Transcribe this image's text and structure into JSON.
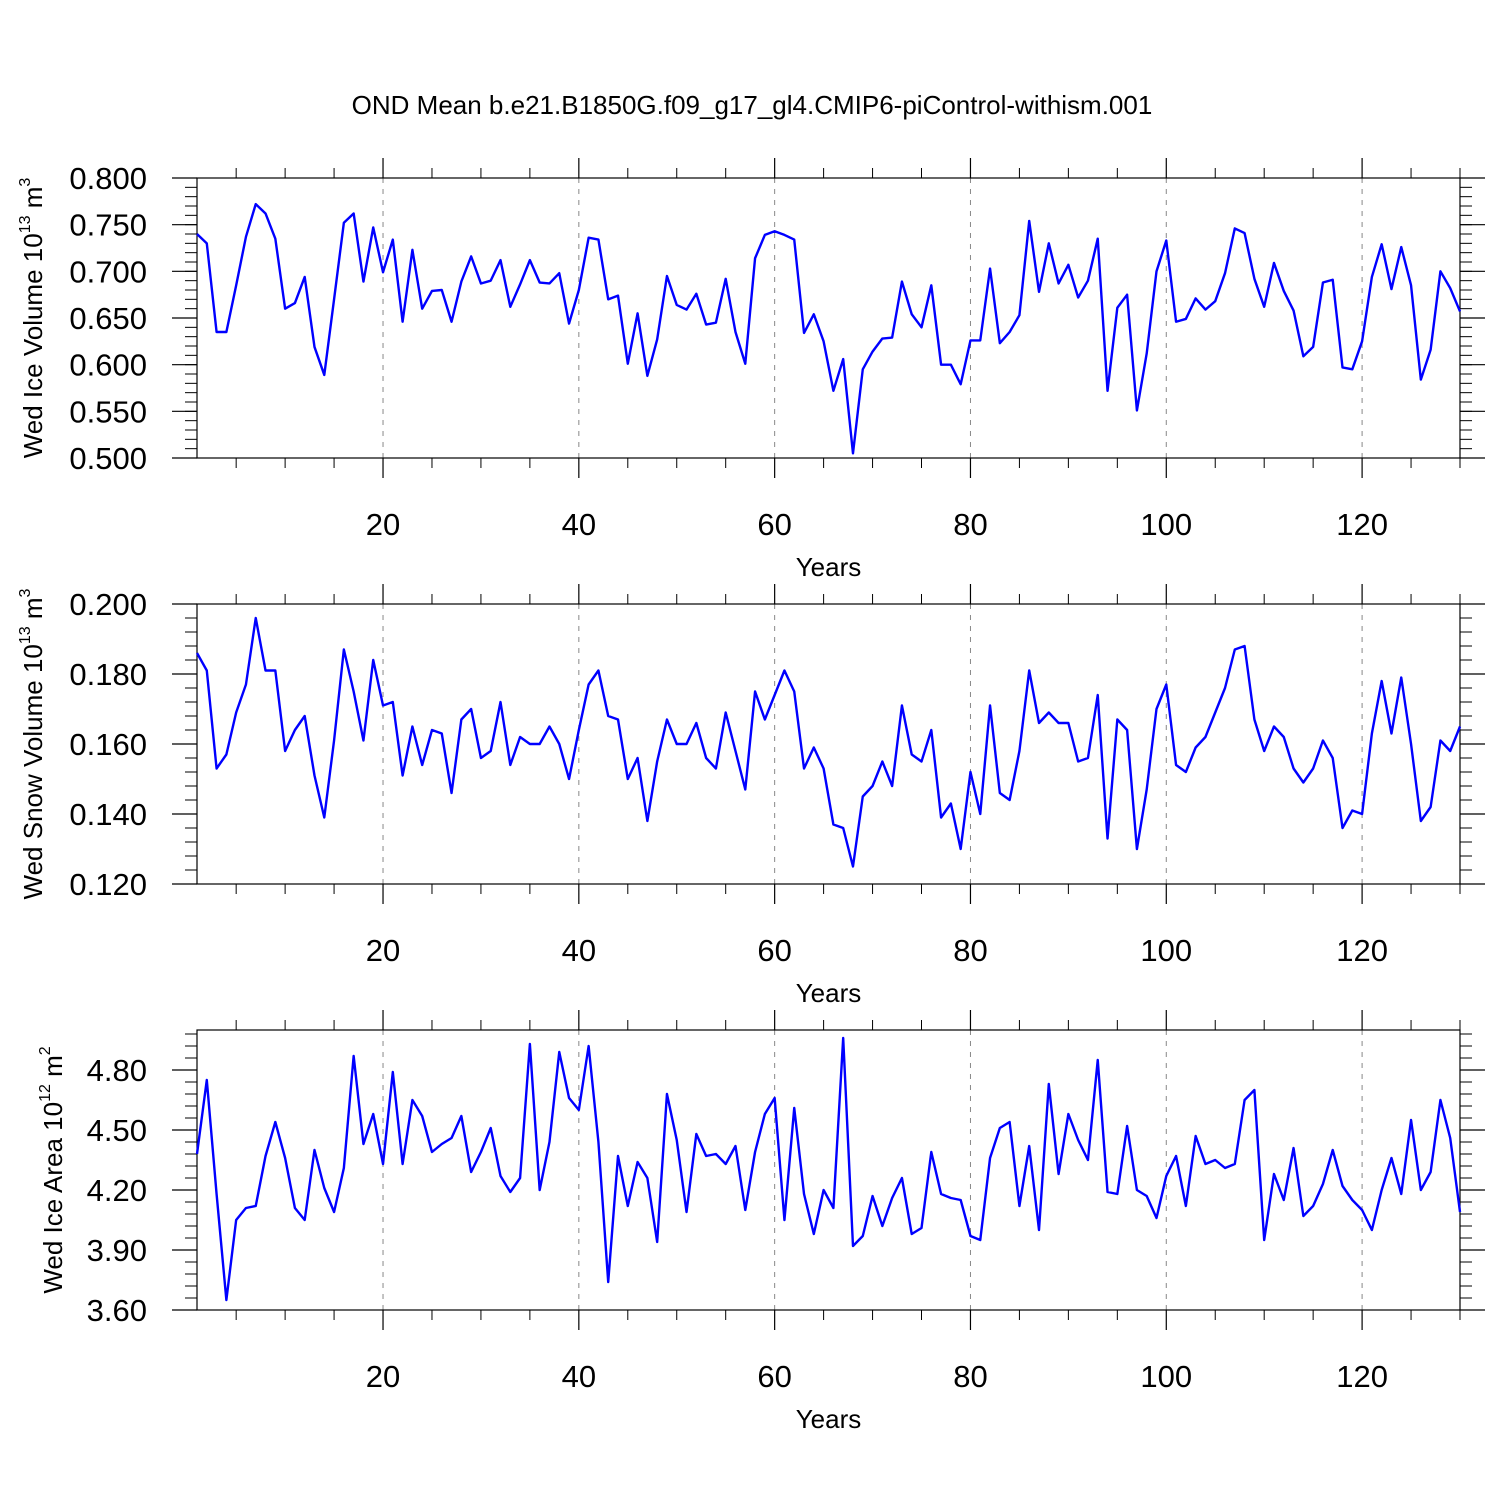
{
  "title": "OND Mean b.e21.B1850G.f09_g17_gl4.CMIP6-piControl-withism.001",
  "colors": {
    "line": "#0000ff",
    "axis": "#000000",
    "grid": "#888888"
  },
  "chart_data": [
    {
      "type": "line",
      "xlabel": "Years",
      "ylabel": {
        "text": "Wed Ice Volume 10",
        "exp": "13",
        "unit": " m",
        "unit_exp": "3"
      },
      "xlim": [
        1,
        130
      ],
      "ylim": [
        0.5,
        0.8
      ],
      "xticks": [
        20,
        40,
        60,
        80,
        100,
        120
      ],
      "xtick_labels": [
        "20",
        "40",
        "60",
        "80",
        "100",
        "120"
      ],
      "yticks": [
        0.5,
        0.55,
        0.6,
        0.65,
        0.7,
        0.75,
        0.8
      ],
      "ytick_labels": [
        "0.500",
        "0.550",
        "0.600",
        "0.650",
        "0.700",
        "0.750",
        "0.800"
      ],
      "y_minor_step": 0.01,
      "grid": "vertical dashed at major x ticks",
      "x_start": 1,
      "values": [
        0.74,
        0.73,
        0.635,
        0.635,
        0.685,
        0.737,
        0.772,
        0.762,
        0.735,
        0.66,
        0.666,
        0.694,
        0.619,
        0.589,
        0.67,
        0.752,
        0.762,
        0.689,
        0.747,
        0.699,
        0.734,
        0.646,
        0.723,
        0.66,
        0.679,
        0.68,
        0.646,
        0.689,
        0.716,
        0.687,
        0.69,
        0.712,
        0.662,
        0.686,
        0.712,
        0.688,
        0.687,
        0.698,
        0.644,
        0.68,
        0.736,
        0.734,
        0.67,
        0.674,
        0.601,
        0.655,
        0.588,
        0.627,
        0.695,
        0.664,
        0.659,
        0.676,
        0.643,
        0.645,
        0.692,
        0.635,
        0.601,
        0.714,
        0.739,
        0.743,
        0.739,
        0.734,
        0.634,
        0.654,
        0.625,
        0.572,
        0.606,
        0.505,
        0.595,
        0.614,
        0.628,
        0.629,
        0.689,
        0.654,
        0.64,
        0.685,
        0.6,
        0.6,
        0.579,
        0.626,
        0.626,
        0.703,
        0.623,
        0.635,
        0.653,
        0.754,
        0.678,
        0.73,
        0.687,
        0.707,
        0.672,
        0.69,
        0.735,
        0.572,
        0.661,
        0.675,
        0.551,
        0.612,
        0.7,
        0.733,
        0.646,
        0.649,
        0.671,
        0.659,
        0.668,
        0.698,
        0.746,
        0.741,
        0.692,
        0.662,
        0.709,
        0.679,
        0.658,
        0.609,
        0.619,
        0.688,
        0.691,
        0.597,
        0.595,
        0.625,
        0.694,
        0.729,
        0.681,
        0.726,
        0.685,
        0.584,
        0.616,
        0.7,
        0.682,
        0.657
      ]
    },
    {
      "type": "line",
      "xlabel": "Years",
      "ylabel": {
        "text": "Wed Snow Volume 10",
        "exp": "13",
        "unit": " m",
        "unit_exp": "3"
      },
      "xlim": [
        1,
        130
      ],
      "ylim": [
        0.12,
        0.2
      ],
      "xticks": [
        20,
        40,
        60,
        80,
        100,
        120
      ],
      "xtick_labels": [
        "20",
        "40",
        "60",
        "80",
        "100",
        "120"
      ],
      "yticks": [
        0.12,
        0.14,
        0.16,
        0.18,
        0.2
      ],
      "ytick_labels": [
        "0.120",
        "0.140",
        "0.160",
        "0.180",
        "0.200"
      ],
      "y_minor_step": 0.004,
      "grid": "vertical dashed at major x ticks",
      "x_start": 1,
      "values": [
        0.186,
        0.181,
        0.153,
        0.157,
        0.169,
        0.177,
        0.196,
        0.181,
        0.181,
        0.158,
        0.164,
        0.168,
        0.151,
        0.139,
        0.161,
        0.187,
        0.175,
        0.161,
        0.184,
        0.171,
        0.172,
        0.151,
        0.165,
        0.154,
        0.164,
        0.163,
        0.146,
        0.167,
        0.17,
        0.156,
        0.158,
        0.172,
        0.154,
        0.162,
        0.16,
        0.16,
        0.165,
        0.16,
        0.15,
        0.164,
        0.177,
        0.181,
        0.168,
        0.167,
        0.15,
        0.156,
        0.138,
        0.155,
        0.167,
        0.16,
        0.16,
        0.166,
        0.156,
        0.153,
        0.169,
        0.158,
        0.147,
        0.175,
        0.167,
        0.174,
        0.181,
        0.175,
        0.153,
        0.159,
        0.153,
        0.137,
        0.136,
        0.125,
        0.145,
        0.148,
        0.155,
        0.148,
        0.171,
        0.157,
        0.155,
        0.164,
        0.139,
        0.143,
        0.13,
        0.152,
        0.14,
        0.171,
        0.146,
        0.144,
        0.158,
        0.181,
        0.166,
        0.169,
        0.166,
        0.166,
        0.155,
        0.156,
        0.174,
        0.133,
        0.167,
        0.164,
        0.13,
        0.147,
        0.17,
        0.177,
        0.154,
        0.152,
        0.159,
        0.162,
        0.169,
        0.176,
        0.187,
        0.188,
        0.167,
        0.158,
        0.165,
        0.162,
        0.153,
        0.149,
        0.153,
        0.161,
        0.156,
        0.136,
        0.141,
        0.14,
        0.163,
        0.178,
        0.163,
        0.179,
        0.16,
        0.138,
        0.142,
        0.161,
        0.158,
        0.165
      ]
    },
    {
      "type": "line",
      "xlabel": "Years",
      "ylabel": {
        "text": "Wed Ice Area 10",
        "exp": "12",
        "unit": " m",
        "unit_exp": "2"
      },
      "xlim": [
        1,
        130
      ],
      "ylim": [
        3.6,
        5.0
      ],
      "xticks": [
        20,
        40,
        60,
        80,
        100,
        120
      ],
      "xtick_labels": [
        "20",
        "40",
        "60",
        "80",
        "100",
        "120"
      ],
      "yticks": [
        3.6,
        3.9,
        4.2,
        4.5,
        4.8
      ],
      "ytick_labels": [
        "3.60",
        "3.90",
        "4.20",
        "4.50",
        "4.80"
      ],
      "y_minor_step": 0.06,
      "grid": "vertical dashed at major x ticks",
      "x_start": 1,
      "values": [
        4.38,
        4.75,
        4.18,
        3.65,
        4.05,
        4.11,
        4.12,
        4.37,
        4.54,
        4.36,
        4.11,
        4.05,
        4.4,
        4.21,
        4.09,
        4.31,
        4.87,
        4.43,
        4.58,
        4.33,
        4.79,
        4.33,
        4.65,
        4.57,
        4.39,
        4.43,
        4.46,
        4.57,
        4.29,
        4.39,
        4.51,
        4.27,
        4.19,
        4.26,
        4.93,
        4.2,
        4.44,
        4.89,
        4.66,
        4.6,
        4.92,
        4.44,
        3.74,
        4.37,
        4.12,
        4.34,
        4.26,
        3.94,
        4.68,
        4.45,
        4.09,
        4.48,
        4.37,
        4.38,
        4.33,
        4.42,
        4.1,
        4.39,
        4.58,
        4.66,
        4.05,
        4.61,
        4.18,
        3.98,
        4.2,
        4.11,
        4.96,
        3.92,
        3.97,
        4.17,
        4.02,
        4.16,
        4.26,
        3.98,
        4.01,
        4.39,
        4.18,
        4.16,
        4.15,
        3.97,
        3.95,
        4.36,
        4.51,
        4.54,
        4.12,
        4.42,
        4.0,
        4.73,
        4.28,
        4.58,
        4.45,
        4.35,
        4.85,
        4.19,
        4.18,
        4.52,
        4.2,
        4.17,
        4.06,
        4.27,
        4.37,
        4.12,
        4.47,
        4.33,
        4.35,
        4.31,
        4.33,
        4.65,
        4.7,
        3.95,
        4.28,
        4.15,
        4.41,
        4.07,
        4.12,
        4.23,
        4.4,
        4.22,
        4.15,
        4.1,
        4.0,
        4.2,
        4.36,
        4.18,
        4.55,
        4.2,
        4.29,
        4.65,
        4.46,
        4.09
      ]
    }
  ]
}
